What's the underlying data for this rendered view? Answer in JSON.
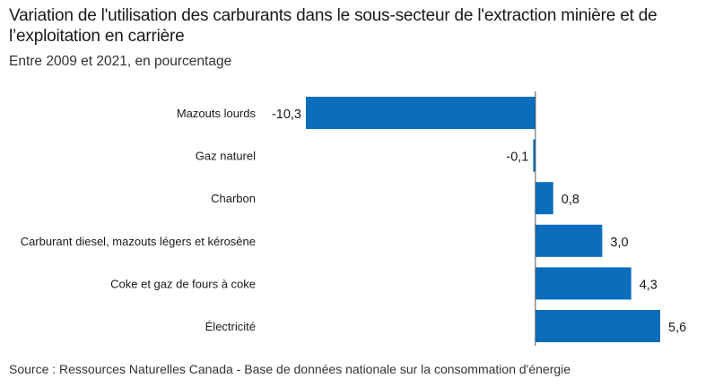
{
  "chart_data": {
    "type": "bar",
    "orientation": "horizontal",
    "title": "Variation de l'utilisation des carburants dans le sous-secteur de l'extraction minière et de l’exploitation en carrière",
    "subtitle": "Entre 2009 et 2021, en pourcentage",
    "source": "Source : Ressources Naturelles Canada - Base de données nationale sur la consommation d'énergie",
    "categories": [
      "Mazouts lourds",
      "Gaz naturel",
      "Charbon",
      "Carburant diesel, mazouts légers et kérosène",
      "Coke et gaz de fours à coke",
      "Électricité"
    ],
    "values": [
      -10.3,
      -0.1,
      0.8,
      3.0,
      4.3,
      5.6
    ],
    "value_labels": [
      "-10,3",
      "-0,1",
      "0,8",
      "3,0",
      "4,3",
      "5,6"
    ],
    "xlim": [
      -10.3,
      5.6
    ],
    "bar_color": "#0a6ebd",
    "axis_color": "#555555",
    "grid": false,
    "legend": "none"
  }
}
